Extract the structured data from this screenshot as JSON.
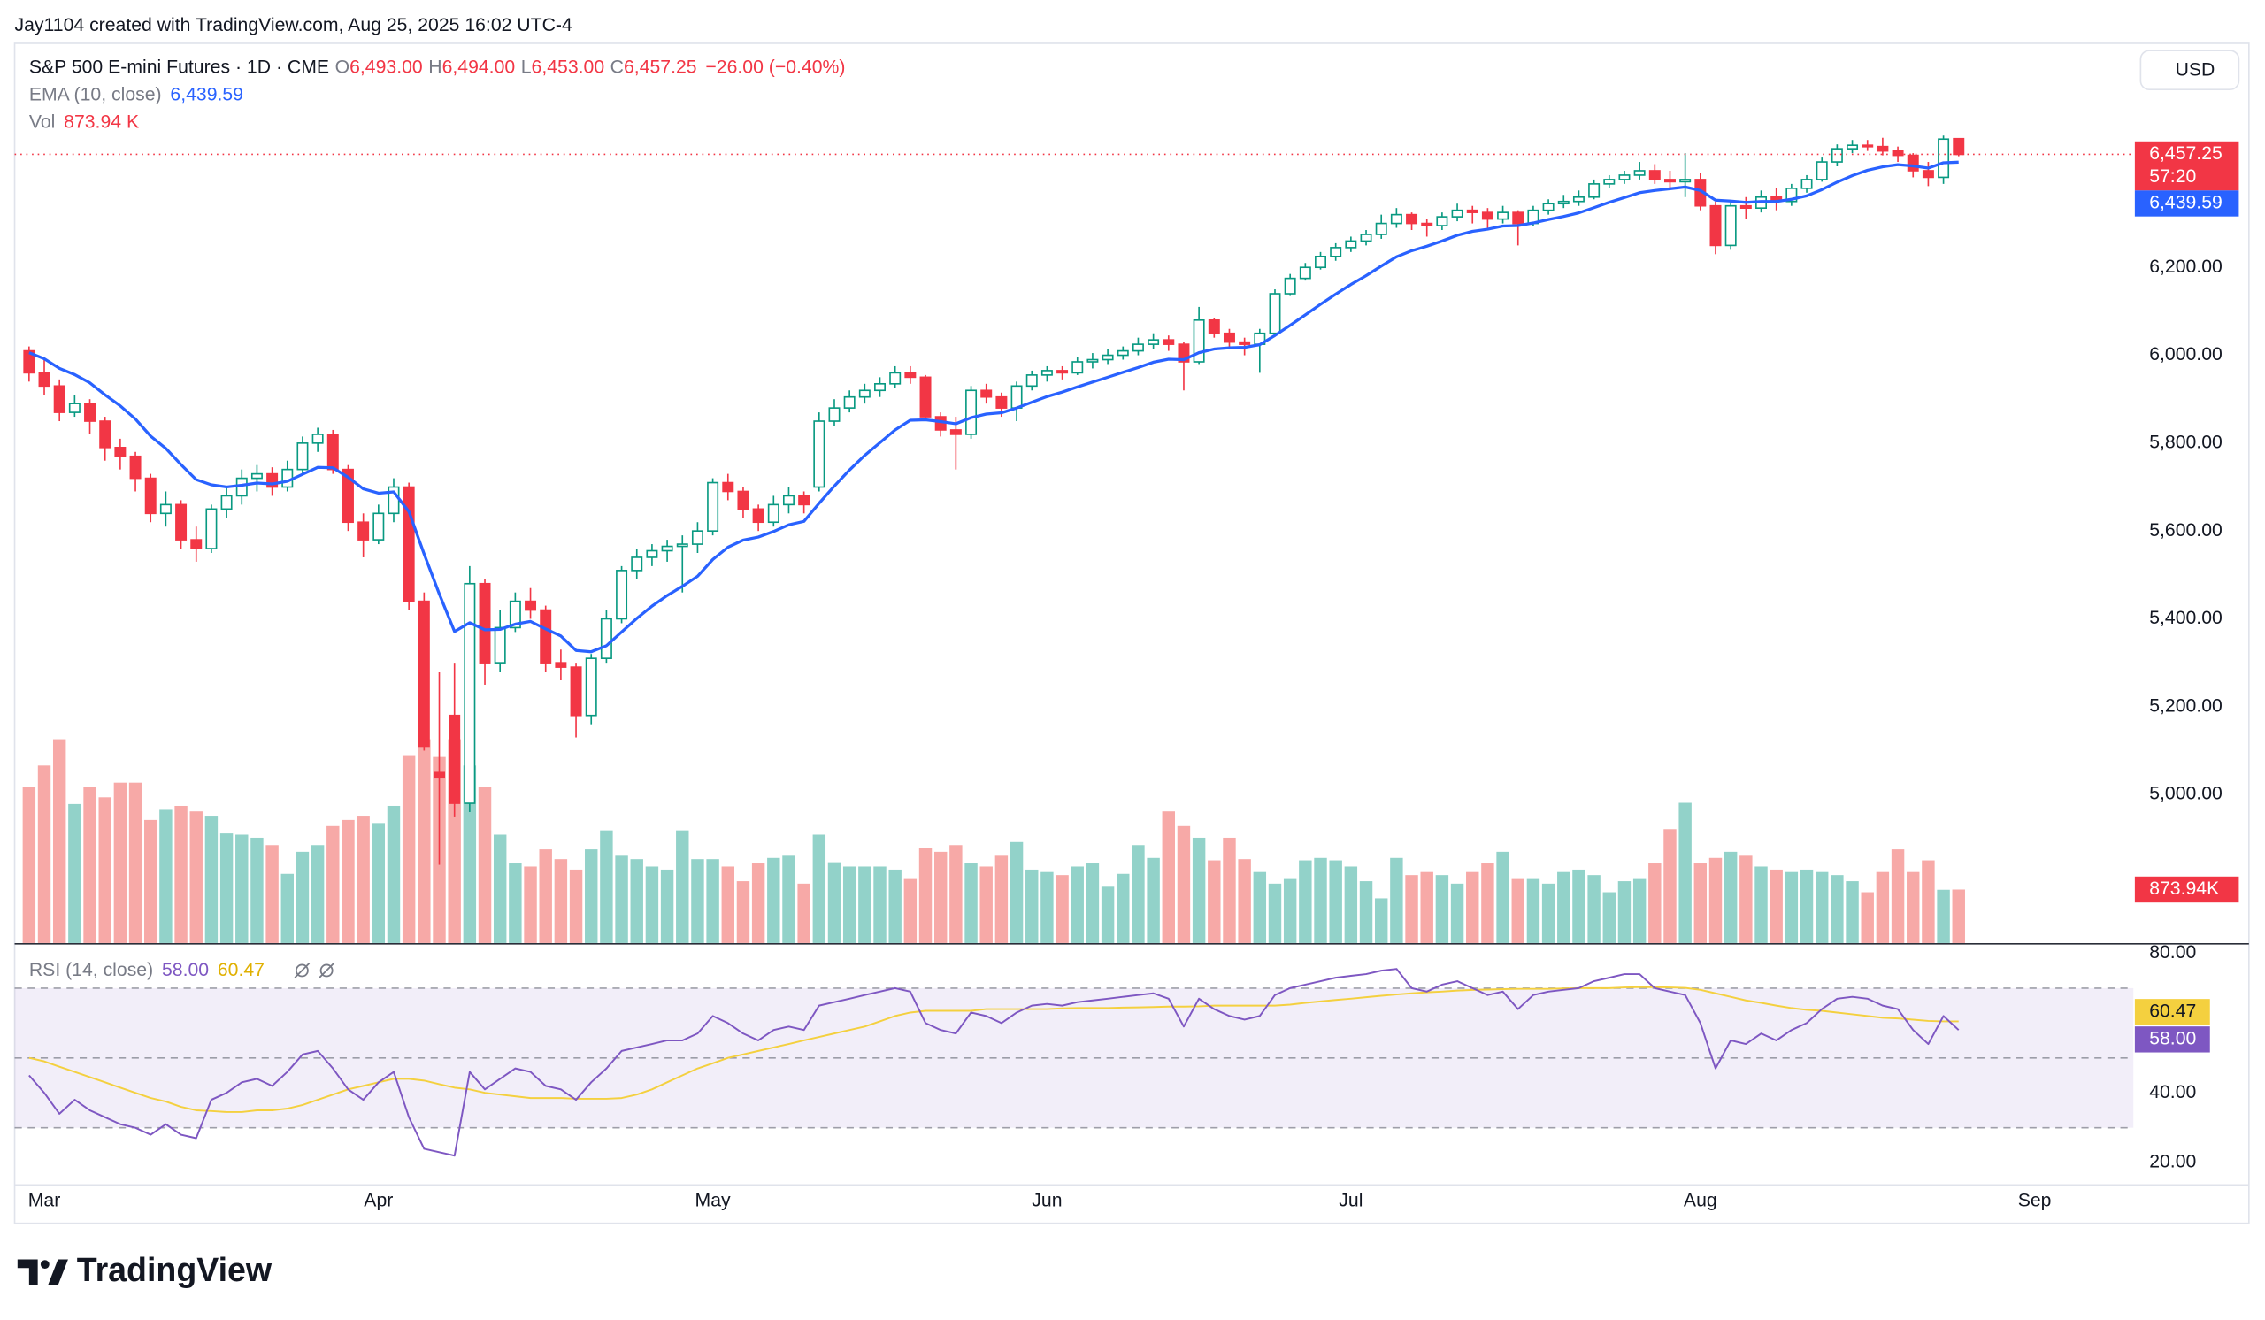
{
  "header": {
    "credit": "Jay1104 created with TradingView.com, Aug 25, 2025 16:02 UTC-4"
  },
  "footer": {
    "logo_text": "TradingView"
  },
  "chart_data": {
    "type": "candlestick",
    "legend": {
      "symbol": "S&P 500 E-mini Futures · 1D · CME",
      "o": "O",
      "open": "6,493.00",
      "h": "H",
      "high": "6,494.00",
      "l": "L",
      "low": "6,453.00",
      "c": "C",
      "close": "6,457.25",
      "change": "−26.00 (−0.40%)",
      "ema_name": "EMA (10, close)",
      "ema_value": "6,439.59",
      "vol_name": "Vol",
      "vol_value": "873.94 K",
      "rsi_name": "RSI (14, close)",
      "rsi_value": "58.00",
      "rsi_ma_value": "60.47"
    },
    "currency": "USD",
    "labels": {
      "last_price": "6,457.25",
      "countdown": "57:20",
      "ema": "6,439.59",
      "volume": "873.94K",
      "rsi": "58.00",
      "rsi_ma": "60.47"
    },
    "colors": {
      "up": "#089981",
      "down": "#f23645",
      "up_volume": "#92d2c9",
      "down_volume": "#f7a9a7",
      "ema": "#2962ff",
      "rsi": "#7e57c2",
      "rsi_ma": "#f4d03f",
      "rsi_band": "#7e57c2"
    },
    "xlim": [
      -0.95,
      138.5
    ],
    "xticks": [
      {
        "value": 1,
        "label": "Mar"
      },
      {
        "value": 23,
        "label": "Apr"
      },
      {
        "value": 45,
        "label": "May"
      },
      {
        "value": 67,
        "label": "Jun"
      },
      {
        "value": 87,
        "label": "Jul"
      },
      {
        "value": 110,
        "label": "Aug"
      },
      {
        "value": 132,
        "label": "Sep"
      }
    ],
    "ylim": [
      4662,
      6710
    ],
    "yticks": [
      {
        "value": 5000,
        "label": "5,000.00"
      },
      {
        "value": 5200,
        "label": "5,200.00"
      },
      {
        "value": 5400,
        "label": "5,400.00"
      },
      {
        "value": 5600,
        "label": "5,600.00"
      },
      {
        "value": 5800,
        "label": "5,800.00"
      },
      {
        "value": 6000,
        "label": "6,000.00"
      },
      {
        "value": 6200,
        "label": "6,200.00"
      }
    ],
    "volume_ylim": [
      0,
      14700
    ],
    "rsi_ylim": [
      13.8,
      82.5
    ],
    "rsi_yticks": [
      {
        "value": 20,
        "label": "20.00"
      },
      {
        "value": 40,
        "label": "40.00"
      },
      {
        "value": 80,
        "label": "80.00"
      }
    ],
    "rsi_levels": [
      30,
      50,
      70
    ],
    "grid": false,
    "ohlc": [
      [
        6010,
        6020,
        5940,
        5960
      ],
      [
        5960,
        5990,
        5910,
        5930
      ],
      [
        5930,
        5945,
        5850,
        5870
      ],
      [
        5870,
        5910,
        5860,
        5890
      ],
      [
        5890,
        5900,
        5820,
        5850
      ],
      [
        5850,
        5860,
        5760,
        5790
      ],
      [
        5790,
        5810,
        5740,
        5770
      ],
      [
        5770,
        5780,
        5690,
        5720
      ],
      [
        5720,
        5730,
        5620,
        5640
      ],
      [
        5640,
        5690,
        5610,
        5660
      ],
      [
        5660,
        5670,
        5560,
        5580
      ],
      [
        5580,
        5610,
        5530,
        5560
      ],
      [
        5560,
        5660,
        5550,
        5650
      ],
      [
        5650,
        5700,
        5630,
        5680
      ],
      [
        5680,
        5740,
        5660,
        5720
      ],
      [
        5720,
        5750,
        5690,
        5730
      ],
      [
        5730,
        5745,
        5680,
        5700
      ],
      [
        5700,
        5760,
        5690,
        5740
      ],
      [
        5740,
        5815,
        5730,
        5800
      ],
      [
        5800,
        5835,
        5780,
        5820
      ],
      [
        5820,
        5830,
        5730,
        5740
      ],
      [
        5740,
        5750,
        5600,
        5620
      ],
      [
        5620,
        5640,
        5540,
        5580
      ],
      [
        5580,
        5660,
        5570,
        5640
      ],
      [
        5640,
        5720,
        5620,
        5700
      ],
      [
        5700,
        5710,
        5420,
        5440
      ],
      [
        5440,
        5460,
        5100,
        5110
      ],
      [
        5050,
        5280,
        4840,
        5040
      ],
      [
        5180,
        5300,
        4950,
        4980
      ],
      [
        4980,
        5520,
        4960,
        5480
      ],
      [
        5480,
        5490,
        5250,
        5300
      ],
      [
        5300,
        5420,
        5280,
        5380
      ],
      [
        5380,
        5460,
        5370,
        5440
      ],
      [
        5440,
        5470,
        5400,
        5420
      ],
      [
        5420,
        5430,
        5280,
        5300
      ],
      [
        5300,
        5330,
        5260,
        5290
      ],
      [
        5290,
        5300,
        5130,
        5180
      ],
      [
        5180,
        5320,
        5160,
        5310
      ],
      [
        5310,
        5420,
        5300,
        5400
      ],
      [
        5400,
        5520,
        5390,
        5510
      ],
      [
        5510,
        5560,
        5490,
        5540
      ],
      [
        5540,
        5570,
        5520,
        5555
      ],
      [
        5555,
        5580,
        5530,
        5565
      ],
      [
        5565,
        5590,
        5460,
        5570
      ],
      [
        5570,
        5620,
        5550,
        5600
      ],
      [
        5600,
        5720,
        5590,
        5710
      ],
      [
        5710,
        5730,
        5670,
        5690
      ],
      [
        5690,
        5700,
        5630,
        5650
      ],
      [
        5650,
        5660,
        5600,
        5620
      ],
      [
        5620,
        5680,
        5610,
        5660
      ],
      [
        5660,
        5700,
        5640,
        5680
      ],
      [
        5680,
        5690,
        5640,
        5660
      ],
      [
        5700,
        5870,
        5690,
        5850
      ],
      [
        5850,
        5900,
        5840,
        5880
      ],
      [
        5880,
        5920,
        5870,
        5905
      ],
      [
        5905,
        5935,
        5890,
        5920
      ],
      [
        5920,
        5950,
        5905,
        5935
      ],
      [
        5935,
        5975,
        5925,
        5960
      ],
      [
        5960,
        5975,
        5935,
        5950
      ],
      [
        5950,
        5955,
        5850,
        5860
      ],
      [
        5860,
        5870,
        5815,
        5830
      ],
      [
        5830,
        5860,
        5740,
        5820
      ],
      [
        5820,
        5930,
        5810,
        5920
      ],
      [
        5920,
        5935,
        5890,
        5905
      ],
      [
        5905,
        5915,
        5860,
        5880
      ],
      [
        5880,
        5940,
        5850,
        5930
      ],
      [
        5930,
        5965,
        5920,
        5955
      ],
      [
        5955,
        5975,
        5940,
        5965
      ],
      [
        5965,
        5975,
        5945,
        5960
      ],
      [
        5960,
        5995,
        5955,
        5985
      ],
      [
        5985,
        6005,
        5970,
        5990
      ],
      [
        5990,
        6015,
        5980,
        6000
      ],
      [
        6000,
        6020,
        5990,
        6010
      ],
      [
        6010,
        6040,
        6000,
        6025
      ],
      [
        6025,
        6050,
        6015,
        6035
      ],
      [
        6035,
        6045,
        6010,
        6025
      ],
      [
        6025,
        6030,
        5920,
        5985
      ],
      [
        5985,
        6110,
        5980,
        6080
      ],
      [
        6080,
        6085,
        6040,
        6050
      ],
      [
        6050,
        6060,
        6020,
        6030
      ],
      [
        6030,
        6040,
        6000,
        6025
      ],
      [
        6025,
        6060,
        5960,
        6050
      ],
      [
        6050,
        6150,
        6045,
        6140
      ],
      [
        6140,
        6185,
        6135,
        6175
      ],
      [
        6175,
        6210,
        6170,
        6200
      ],
      [
        6200,
        6235,
        6195,
        6225
      ],
      [
        6225,
        6255,
        6215,
        6245
      ],
      [
        6245,
        6270,
        6235,
        6260
      ],
      [
        6260,
        6285,
        6250,
        6275
      ],
      [
        6275,
        6320,
        6265,
        6300
      ],
      [
        6300,
        6335,
        6290,
        6320
      ],
      [
        6320,
        6325,
        6285,
        6300
      ],
      [
        6300,
        6310,
        6270,
        6295
      ],
      [
        6295,
        6325,
        6285,
        6315
      ],
      [
        6315,
        6345,
        6305,
        6330
      ],
      [
        6330,
        6340,
        6300,
        6325
      ],
      [
        6325,
        6335,
        6290,
        6310
      ],
      [
        6310,
        6340,
        6300,
        6325
      ],
      [
        6325,
        6330,
        6250,
        6300
      ],
      [
        6300,
        6340,
        6295,
        6330
      ],
      [
        6330,
        6355,
        6320,
        6345
      ],
      [
        6345,
        6365,
        6335,
        6350
      ],
      [
        6350,
        6375,
        6340,
        6360
      ],
      [
        6360,
        6400,
        6355,
        6390
      ],
      [
        6390,
        6410,
        6380,
        6400
      ],
      [
        6400,
        6420,
        6390,
        6410
      ],
      [
        6410,
        6440,
        6400,
        6420
      ],
      [
        6420,
        6435,
        6390,
        6400
      ],
      [
        6400,
        6420,
        6380,
        6395
      ],
      [
        6395,
        6460,
        6360,
        6400
      ],
      [
        6400,
        6415,
        6330,
        6340
      ],
      [
        6340,
        6350,
        6230,
        6250
      ],
      [
        6250,
        6350,
        6240,
        6340
      ],
      [
        6340,
        6360,
        6310,
        6335
      ],
      [
        6335,
        6375,
        6325,
        6360
      ],
      [
        6360,
        6380,
        6330,
        6350
      ],
      [
        6350,
        6390,
        6340,
        6380
      ],
      [
        6380,
        6410,
        6370,
        6400
      ],
      [
        6400,
        6450,
        6395,
        6440
      ],
      [
        6440,
        6480,
        6430,
        6470
      ],
      [
        6470,
        6490,
        6460,
        6478
      ],
      [
        6478,
        6490,
        6465,
        6475
      ],
      [
        6475,
        6495,
        6455,
        6465
      ],
      [
        6465,
        6475,
        6440,
        6455
      ],
      [
        6455,
        6460,
        6405,
        6420
      ],
      [
        6420,
        6440,
        6385,
        6405
      ],
      [
        6405,
        6500,
        6390,
        6492
      ],
      [
        6493,
        6494,
        6453,
        6457.25
      ]
    ],
    "ema": [
      6006,
      5992,
      5970,
      5956,
      5937,
      5910,
      5885,
      5855,
      5816,
      5788,
      5751,
      5717,
      5705,
      5700,
      5704,
      5709,
      5707,
      5713,
      5729,
      5745,
      5744,
      5722,
      5696,
      5686,
      5689,
      5644,
      5548,
      5457,
      5371,
      5391,
      5375,
      5376,
      5388,
      5394,
      5377,
      5361,
      5328,
      5325,
      5339,
      5370,
      5401,
      5429,
      5453,
      5474,
      5497,
      5535,
      5563,
      5579,
      5586,
      5599,
      5614,
      5622,
      5663,
      5702,
      5739,
      5772,
      5801,
      5830,
      5852,
      5853,
      5849,
      5844,
      5858,
      5866,
      5869,
      5880,
      5893,
      5906,
      5916,
      5928,
      5939,
      5950,
      5961,
      5972,
      5984,
      5991,
      5990,
      6006,
      6014,
      6017,
      6018,
      6024,
      6045,
      6068,
      6092,
      6116,
      6139,
      6161,
      6181,
      6203,
      6224,
      6238,
      6248,
      6260,
      6273,
      6282,
      6287,
      6294,
      6295,
      6301,
      6309,
      6316,
      6324,
      6336,
      6348,
      6359,
      6370,
      6375,
      6379,
      6383,
      6375,
      6353,
      6351,
      6348,
      6350,
      6350,
      6355,
      6363,
      6377,
      6394,
      6409,
      6421,
      6429,
      6434,
      6431,
      6426,
      6438,
      6439.59
    ],
    "volume": [
      2550,
      2900,
      3330,
      2270,
      2550,
      2380,
      2620,
      2620,
      2010,
      2190,
      2240,
      2150,
      2080,
      1790,
      1770,
      1720,
      1600,
      1130,
      1490,
      1600,
      1910,
      2010,
      2080,
      1960,
      2240,
      3070,
      3330,
      3040,
      3330,
      2900,
      2550,
      1770,
      1300,
      1250,
      1530,
      1370,
      1200,
      1530,
      1840,
      1440,
      1370,
      1250,
      1200,
      1840,
      1370,
      1370,
      1250,
      1010,
      1300,
      1390,
      1440,
      970,
      1770,
      1320,
      1250,
      1250,
      1250,
      1200,
      1060,
      1560,
      1490,
      1600,
      1300,
      1250,
      1440,
      1650,
      1200,
      1160,
      1110,
      1250,
      1300,
      920,
      1130,
      1600,
      1390,
      2150,
      1910,
      1720,
      1350,
      1720,
      1370,
      1160,
      970,
      1060,
      1350,
      1390,
      1350,
      1250,
      1010,
      730,
      1390,
      1110,
      1160,
      1110,
      970,
      1160,
      1300,
      1490,
      1060,
      1060,
      970,
      1160,
      1200,
      1110,
      830,
      1010,
      1060,
      1300,
      1860,
      2290,
      1300,
      1390,
      1490,
      1440,
      1250,
      1200,
      1160,
      1200,
      1160,
      1110,
      1010,
      830,
      1160,
      1530,
      1160,
      1350,
      870,
      873.94
    ],
    "rsi": [
      45,
      40,
      34,
      38,
      35,
      33,
      31,
      30,
      28,
      31,
      28,
      27,
      38,
      40,
      43,
      44,
      42,
      46,
      51,
      52,
      47,
      41,
      38,
      43,
      46,
      33,
      24,
      23,
      22,
      46,
      41,
      44,
      47,
      46,
      42,
      41,
      38,
      43,
      47,
      52,
      53,
      54,
      55,
      55,
      57,
      62,
      60,
      57,
      55,
      58,
      59,
      58,
      65,
      66,
      67,
      68,
      69,
      70,
      69,
      60,
      58,
      57,
      63,
      62,
      60,
      63,
      65,
      65.5,
      65,
      66,
      66.5,
      67,
      67.5,
      68,
      68.5,
      67,
      59,
      67,
      64,
      62,
      61,
      62,
      68,
      70,
      71,
      72,
      73,
      73.5,
      74,
      75,
      75.5,
      70,
      69,
      71,
      72,
      70,
      68,
      69,
      64,
      68,
      69,
      69.5,
      70,
      72,
      73,
      74,
      74,
      70,
      69,
      68,
      60,
      47,
      55,
      54,
      57,
      55,
      58,
      60,
      64,
      67,
      67.5,
      67,
      65,
      64,
      58,
      54,
      62,
      58
    ],
    "rsi_ma": [
      50,
      49,
      47.5,
      46,
      44.5,
      43,
      41.5,
      40,
      38.5,
      37.5,
      36,
      35,
      34.8,
      34.5,
      34.5,
      35,
      35,
      35.5,
      36.5,
      38,
      39.5,
      41,
      42,
      43,
      44,
      44,
      43.5,
      42.5,
      41.5,
      41,
      40,
      39.5,
      39,
      38.5,
      38.5,
      38.5,
      38.3,
      38.3,
      38.3,
      38.5,
      39.5,
      41,
      43,
      45,
      47,
      48.5,
      50,
      51,
      52,
      53,
      54,
      55,
      56,
      57,
      58,
      59,
      60.5,
      62,
      63,
      63.5,
      63.5,
      63.5,
      63.5,
      64,
      64,
      64,
      64,
      64,
      64.2,
      64.3,
      64.3,
      64.3,
      64.4,
      64.5,
      64.6,
      64.7,
      64.7,
      64.8,
      65,
      65,
      65,
      65,
      65,
      65.3,
      65.8,
      66.2,
      66.6,
      67,
      67.4,
      67.8,
      68.2,
      68.5,
      68.8,
      69,
      69.3,
      69.5,
      69.6,
      69.7,
      69.8,
      69.8,
      69.8,
      69.9,
      70,
      70,
      70,
      70.2,
      70.3,
      70.3,
      70.2,
      70.1,
      69.5,
      68.5,
      67.5,
      66.5,
      65.8,
      65,
      64.3,
      63.8,
      63.5,
      63,
      62.5,
      62,
      61.5,
      61.3,
      61,
      60.6,
      60.5,
      60.47
    ]
  }
}
